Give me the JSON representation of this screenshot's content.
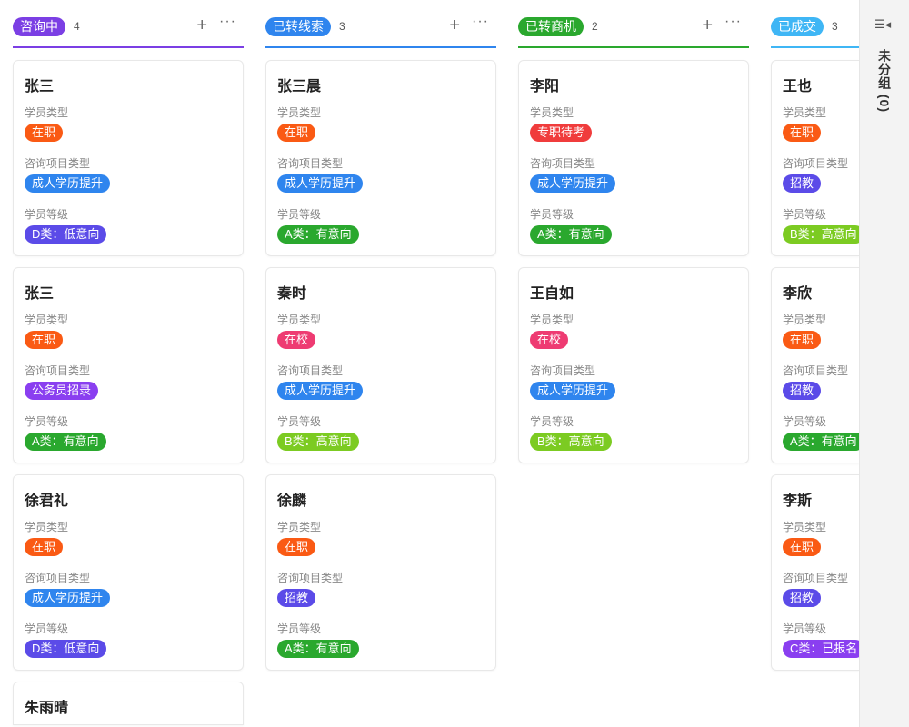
{
  "columns": [
    {
      "title": "咨询中",
      "count": "4",
      "color": "#7b3fe4",
      "cards": [
        {
          "name": "张三",
          "fields": [
            {
              "label": "学员类型",
              "tag": "在职",
              "color": "#fa5a14"
            },
            {
              "label": "咨询项目类型",
              "tag": "成人学历提升",
              "color": "#2f85ee"
            },
            {
              "label": "学员等级",
              "tag": "D类：低意向",
              "color": "#5b4be8"
            }
          ]
        },
        {
          "name": "张三",
          "fields": [
            {
              "label": "学员类型",
              "tag": "在职",
              "color": "#fa5a14"
            },
            {
              "label": "咨询项目类型",
              "tag": "公务员招录",
              "color": "#8a3ff0"
            },
            {
              "label": "学员等级",
              "tag": "A类：有意向",
              "color": "#2aa82e"
            }
          ]
        },
        {
          "name": "徐君礼",
          "fields": [
            {
              "label": "学员类型",
              "tag": "在职",
              "color": "#fa5a14"
            },
            {
              "label": "咨询项目类型",
              "tag": "成人学历提升",
              "color": "#2f85ee"
            },
            {
              "label": "学员等级",
              "tag": "D类：低意向",
              "color": "#5b4be8"
            }
          ]
        },
        {
          "name": "朱雨晴",
          "fields": []
        }
      ]
    },
    {
      "title": "已转线索",
      "count": "3",
      "color": "#2f85ee",
      "cards": [
        {
          "name": "张三晨",
          "fields": [
            {
              "label": "学员类型",
              "tag": "在职",
              "color": "#fa5a14"
            },
            {
              "label": "咨询项目类型",
              "tag": "成人学历提升",
              "color": "#2f85ee"
            },
            {
              "label": "学员等级",
              "tag": "A类：有意向",
              "color": "#2aa82e"
            }
          ]
        },
        {
          "name": "秦时",
          "fields": [
            {
              "label": "学员类型",
              "tag": "在校",
              "color": "#ee3b72"
            },
            {
              "label": "咨询项目类型",
              "tag": "成人学历提升",
              "color": "#2f85ee"
            },
            {
              "label": "学员等级",
              "tag": "B类：高意向",
              "color": "#7ccb22"
            }
          ]
        },
        {
          "name": "徐麟",
          "fields": [
            {
              "label": "学员类型",
              "tag": "在职",
              "color": "#fa5a14"
            },
            {
              "label": "咨询项目类型",
              "tag": "招教",
              "color": "#5b4be8"
            },
            {
              "label": "学员等级",
              "tag": "A类：有意向",
              "color": "#2aa82e"
            }
          ]
        }
      ]
    },
    {
      "title": "已转商机",
      "count": "2",
      "color": "#2aa82e",
      "cards": [
        {
          "name": "李阳",
          "fields": [
            {
              "label": "学员类型",
              "tag": "专职待考",
              "color": "#f03c3c"
            },
            {
              "label": "咨询项目类型",
              "tag": "成人学历提升",
              "color": "#2f85ee"
            },
            {
              "label": "学员等级",
              "tag": "A类：有意向",
              "color": "#2aa82e"
            }
          ]
        },
        {
          "name": "王自如",
          "fields": [
            {
              "label": "学员类型",
              "tag": "在校",
              "color": "#ee3b72"
            },
            {
              "label": "咨询项目类型",
              "tag": "成人学历提升",
              "color": "#2f85ee"
            },
            {
              "label": "学员等级",
              "tag": "B类：高意向",
              "color": "#7ccb22"
            }
          ]
        }
      ]
    },
    {
      "title": "已成交",
      "count": "3",
      "color": "#3fb6f5",
      "cards": [
        {
          "name": "王也",
          "fields": [
            {
              "label": "学员类型",
              "tag": "在职",
              "color": "#fa5a14"
            },
            {
              "label": "咨询项目类型",
              "tag": "招教",
              "color": "#5b4be8"
            },
            {
              "label": "学员等级",
              "tag": "B类：高意向",
              "color": "#7ccb22"
            }
          ]
        },
        {
          "name": "李欣",
          "fields": [
            {
              "label": "学员类型",
              "tag": "在职",
              "color": "#fa5a14"
            },
            {
              "label": "咨询项目类型",
              "tag": "招教",
              "color": "#5b4be8"
            },
            {
              "label": "学员等级",
              "tag": "A类：有意向",
              "color": "#2aa82e"
            }
          ]
        },
        {
          "name": "李斯",
          "fields": [
            {
              "label": "学员类型",
              "tag": "在职",
              "color": "#fa5a14"
            },
            {
              "label": "咨询项目类型",
              "tag": "招教",
              "color": "#5b4be8"
            },
            {
              "label": "学员等级",
              "tag": "C类：已报名",
              "color": "#8a3ff0"
            }
          ]
        }
      ]
    }
  ],
  "side_panel": {
    "icon": "collapse-list-icon",
    "label": "未分组 (0)"
  }
}
